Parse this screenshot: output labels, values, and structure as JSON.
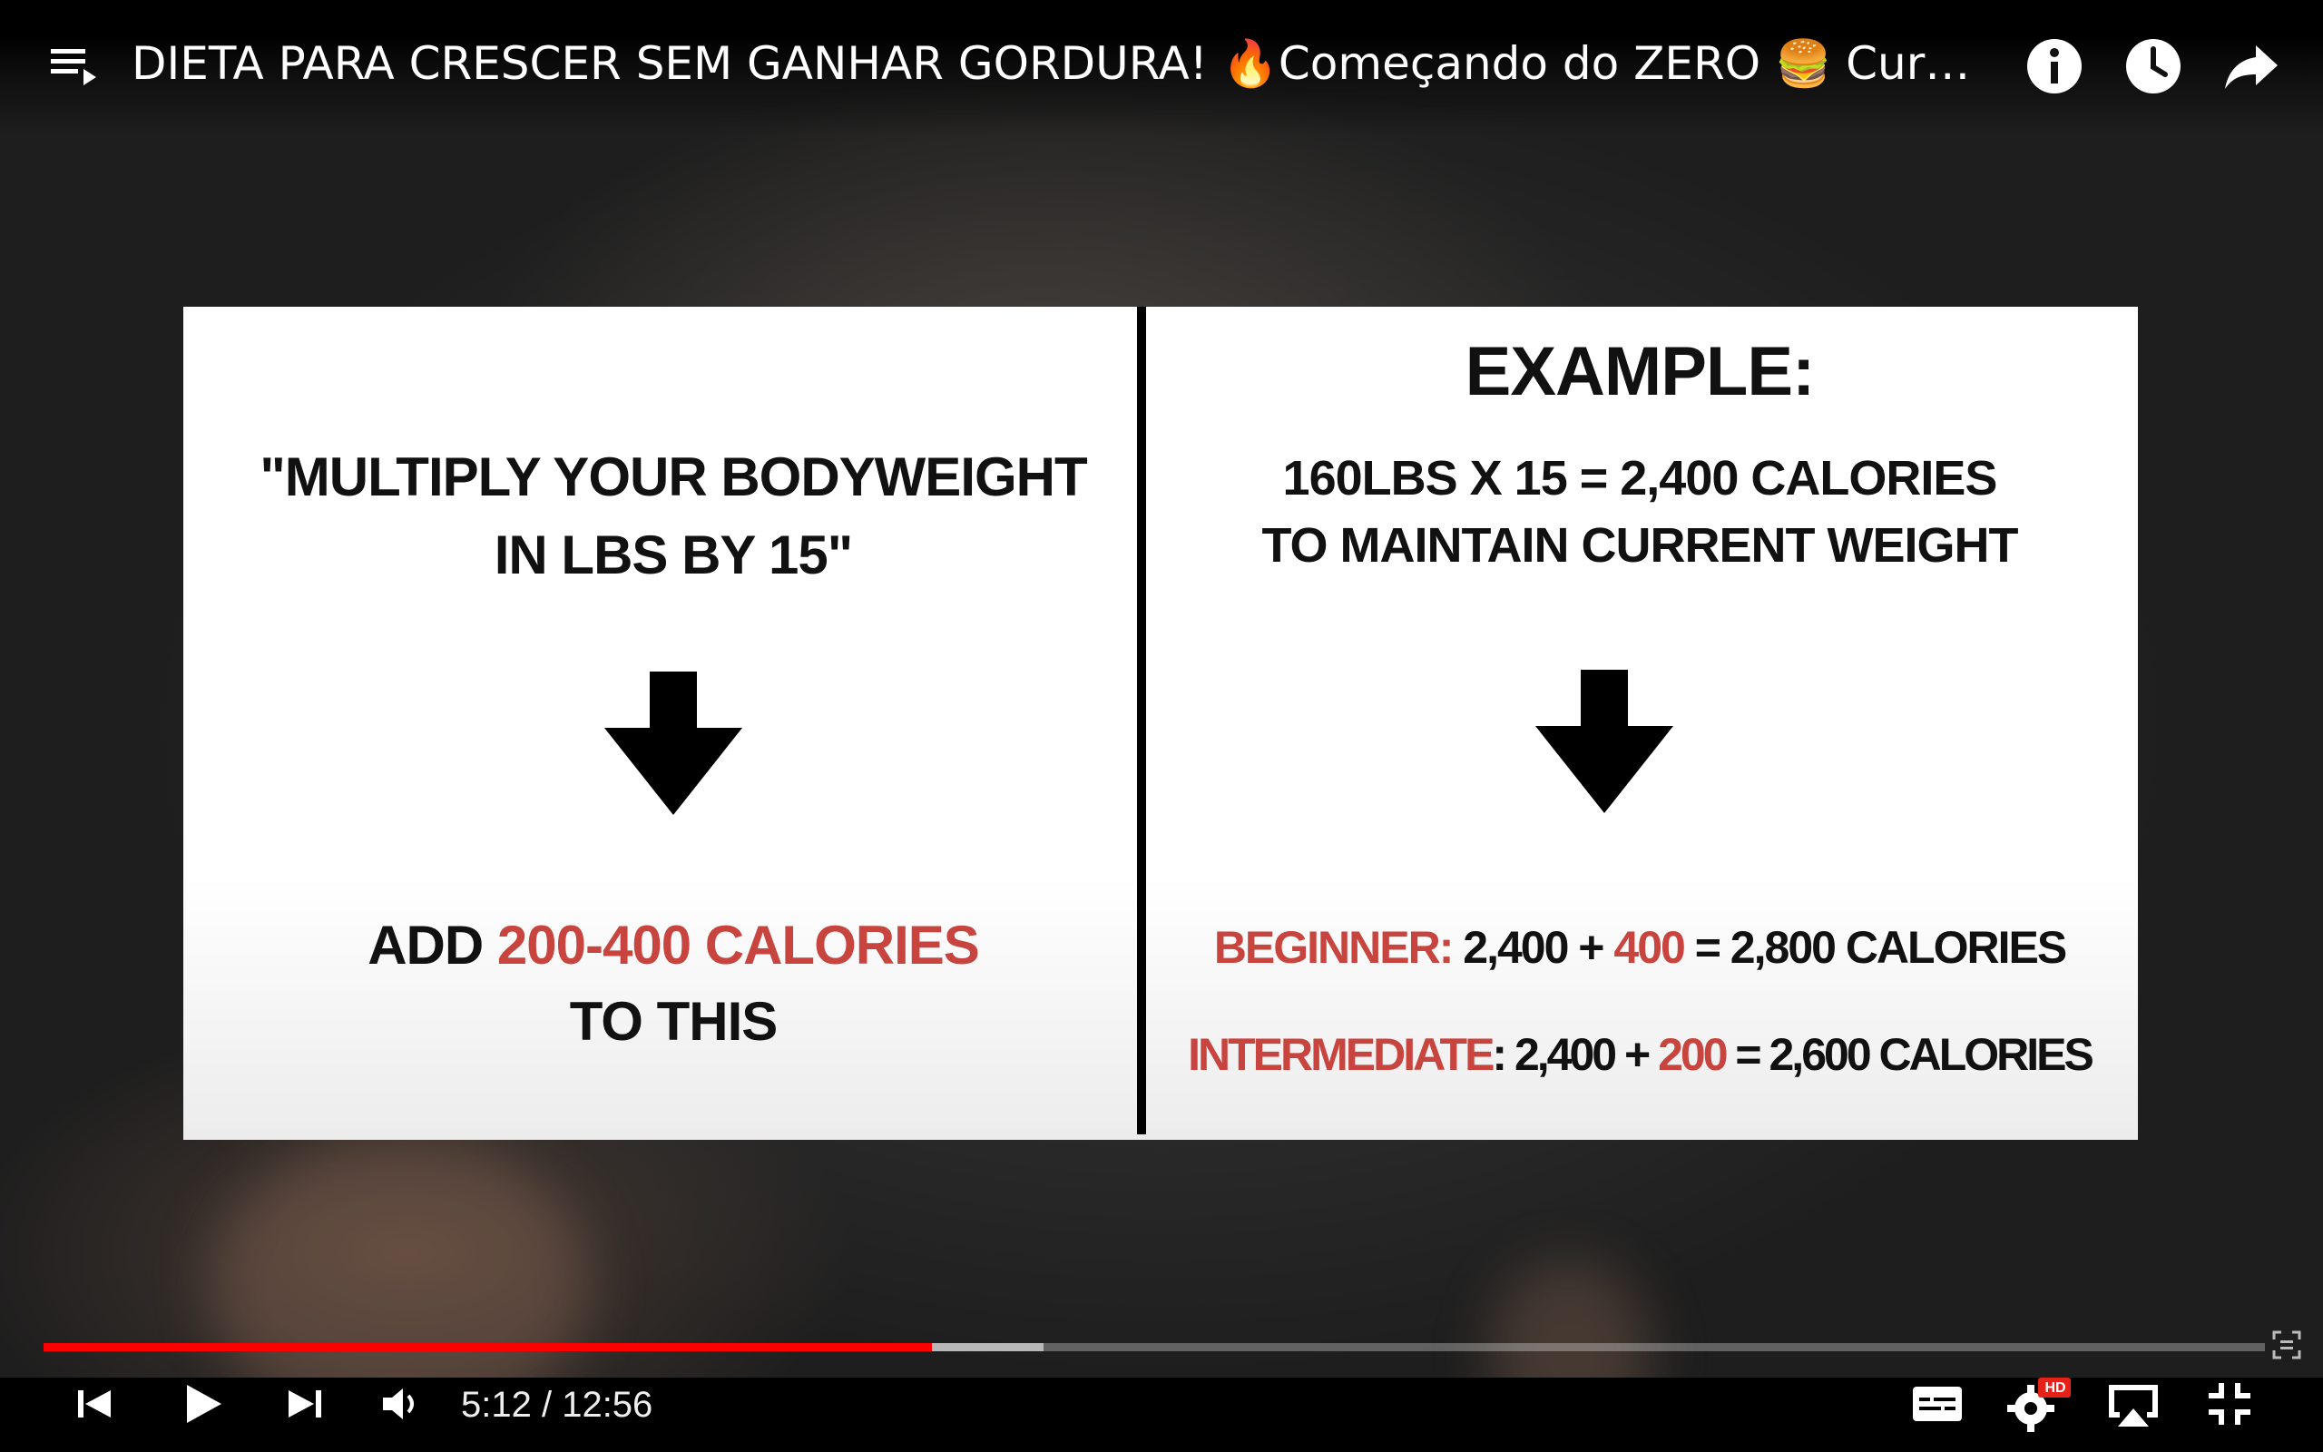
{
  "header": {
    "title": "DIETA PARA CRESCER SEM GANHAR GORDURA! 🔥Começando do ZERO 🍔 Curso DI…",
    "buttons": [
      "playlist-icon",
      "info-icon",
      "watch-later-icon",
      "share-icon"
    ]
  },
  "slide": {
    "left": {
      "quote_line1": "\"MULTIPLY YOUR BODYWEIGHT",
      "quote_line2": "IN LBS BY 15\"",
      "add_prefix": "ADD ",
      "add_highlight": "200-400 CALORIES",
      "add_line2": "TO THIS"
    },
    "right": {
      "title": "EXAMPLE:",
      "line1": "160LBS X 15 = 2,400 CALORIES",
      "line2": "TO MAINTAIN CURRENT WEIGHT",
      "beginner_label": "BEGINNER:",
      "beginner_base": " 2,400 + ",
      "beginner_add": "400",
      "beginner_result": " = 2,800 CALORIES",
      "intermediate_label": "INTERMEDIATE",
      "intermediate_base": ": 2,400 + ",
      "intermediate_add": "200",
      "intermediate_result": " = 2,600 CALORIES"
    }
  },
  "player": {
    "current_time": "5:12",
    "separator": " / ",
    "duration": "12:56",
    "played_fraction": 0.4,
    "buffered_fraction": 0.45,
    "quality_badge": "HD",
    "accent_color": "#ff0000",
    "highlight_color": "#c8443e"
  }
}
